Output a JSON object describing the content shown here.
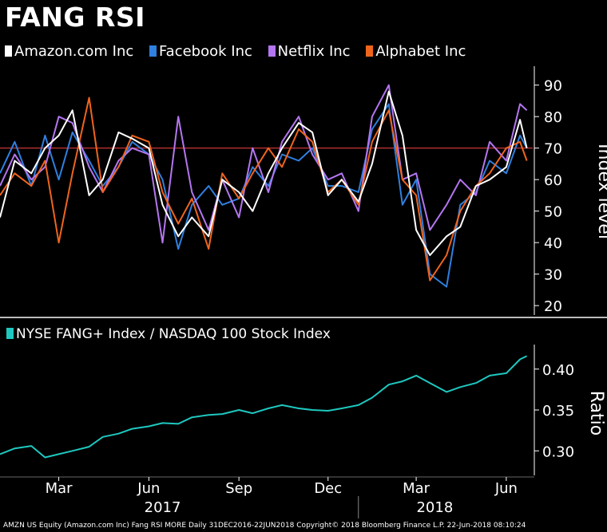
{
  "title": "FANG RSI",
  "footer": "AMZN US Equity (Amazon.com Inc) Fang RSI MORE  Daily 31DEC2016-22JUN2018 Copyright© 2018 Bloomberg Finance L.P. 22-Jun-2018 08:10:24",
  "colors": {
    "background": "#000000",
    "amazon": "#ffffff",
    "facebook": "#2f80e0",
    "netflix": "#b476f0",
    "alphabet": "#f0641e",
    "ratio": "#1ec8c0",
    "threshold": "#b03030",
    "axis": "#ffffff"
  },
  "chart_data": [
    {
      "type": "line",
      "title": "FANG RSI",
      "ylabel": "Index level",
      "ylim": [
        17,
        96
      ],
      "yticks": [
        20,
        30,
        40,
        50,
        60,
        70,
        80,
        90
      ],
      "reference_line": 70,
      "x": [
        "2016-12-31",
        "2017-01-15",
        "2017-02-01",
        "2017-02-15",
        "2017-03-01",
        "2017-03-15",
        "2017-04-01",
        "2017-04-15",
        "2017-05-01",
        "2017-05-15",
        "2017-06-01",
        "2017-06-15",
        "2017-07-01",
        "2017-07-15",
        "2017-08-01",
        "2017-08-15",
        "2017-09-01",
        "2017-09-15",
        "2017-10-01",
        "2017-10-15",
        "2017-11-01",
        "2017-11-15",
        "2017-12-01",
        "2017-12-15",
        "2018-01-01",
        "2018-01-15",
        "2018-02-01",
        "2018-02-15",
        "2018-03-01",
        "2018-03-15",
        "2018-04-01",
        "2018-04-15",
        "2018-05-01",
        "2018-05-15",
        "2018-06-01",
        "2018-06-15",
        "2018-06-22"
      ],
      "series": [
        {
          "name": "Amazon.com Inc",
          "values": [
            48,
            66,
            62,
            70,
            74,
            82,
            55,
            60,
            75,
            73,
            70,
            52,
            42,
            48,
            42,
            60,
            56,
            50,
            62,
            70,
            78,
            75,
            55,
            60,
            53,
            65,
            88,
            74,
            44,
            36,
            42,
            45,
            58,
            60,
            64,
            79,
            70
          ]
        },
        {
          "name": "Facebook Inc",
          "values": [
            62,
            72,
            58,
            74,
            60,
            75,
            66,
            58,
            64,
            72,
            68,
            60,
            38,
            52,
            58,
            52,
            54,
            64,
            58,
            68,
            66,
            70,
            58,
            58,
            56,
            76,
            84,
            52,
            60,
            30,
            26,
            52,
            56,
            66,
            62,
            74,
            70
          ]
        },
        {
          "name": "Netflix Inc",
          "values": [
            58,
            68,
            60,
            64,
            80,
            78,
            64,
            56,
            66,
            70,
            68,
            40,
            80,
            56,
            44,
            60,
            48,
            70,
            56,
            72,
            80,
            68,
            60,
            62,
            50,
            80,
            90,
            60,
            62,
            44,
            52,
            60,
            55,
            72,
            66,
            84,
            82
          ]
        },
        {
          "name": "Alphabet Inc",
          "values": [
            55,
            62,
            58,
            66,
            40,
            62,
            86,
            56,
            64,
            74,
            72,
            56,
            46,
            54,
            38,
            62,
            54,
            62,
            70,
            64,
            76,
            72,
            56,
            60,
            52,
            72,
            82,
            60,
            55,
            28,
            36,
            50,
            58,
            62,
            70,
            72,
            66
          ]
        }
      ]
    },
    {
      "type": "line",
      "title": "NYSE FANG+ Index / NASDAQ 100 Stock Index",
      "ylabel": "Ratio",
      "ylim": [
        0.27,
        0.43
      ],
      "yticks": [
        0.3,
        0.35,
        0.4
      ],
      "ytick_labels": [
        "0.30",
        "0.35",
        "0.40"
      ],
      "x": [
        "2016-12-31",
        "2017-01-15",
        "2017-02-01",
        "2017-02-15",
        "2017-03-01",
        "2017-03-15",
        "2017-04-01",
        "2017-04-15",
        "2017-05-01",
        "2017-05-15",
        "2017-06-01",
        "2017-06-15",
        "2017-07-01",
        "2017-07-15",
        "2017-08-01",
        "2017-08-15",
        "2017-09-01",
        "2017-09-15",
        "2017-10-01",
        "2017-10-15",
        "2017-11-01",
        "2017-11-15",
        "2017-12-01",
        "2017-12-15",
        "2018-01-01",
        "2018-01-15",
        "2018-02-01",
        "2018-02-15",
        "2018-03-01",
        "2018-03-15",
        "2018-04-01",
        "2018-04-15",
        "2018-05-01",
        "2018-05-15",
        "2018-06-01",
        "2018-06-15",
        "2018-06-22"
      ],
      "series": [
        {
          "name": "NYSE FANG+ Index / NASDAQ 100 Stock Index",
          "values": [
            0.296,
            0.303,
            0.306,
            0.292,
            0.296,
            0.3,
            0.305,
            0.317,
            0.321,
            0.327,
            0.33,
            0.334,
            0.333,
            0.341,
            0.344,
            0.345,
            0.35,
            0.346,
            0.352,
            0.356,
            0.352,
            0.35,
            0.349,
            0.352,
            0.356,
            0.365,
            0.381,
            0.385,
            0.392,
            0.383,
            0.372,
            0.378,
            0.383,
            0.392,
            0.395,
            0.412,
            0.416
          ]
        }
      ]
    }
  ],
  "x_axis": {
    "month_ticks": [
      {
        "label": "Mar",
        "date": "2017-03-01"
      },
      {
        "label": "Jun",
        "date": "2017-06-01"
      },
      {
        "label": "Sep",
        "date": "2017-09-01"
      },
      {
        "label": "Dec",
        "date": "2017-12-01"
      },
      {
        "label": "Mar",
        "date": "2018-03-01"
      },
      {
        "label": "Jun",
        "date": "2018-06-01"
      }
    ],
    "year_labels": [
      {
        "label": "2017",
        "date": "2017-06-15"
      },
      {
        "label": "2018",
        "date": "2018-03-20"
      }
    ],
    "start": "2016-12-31",
    "end": "2018-06-28"
  }
}
